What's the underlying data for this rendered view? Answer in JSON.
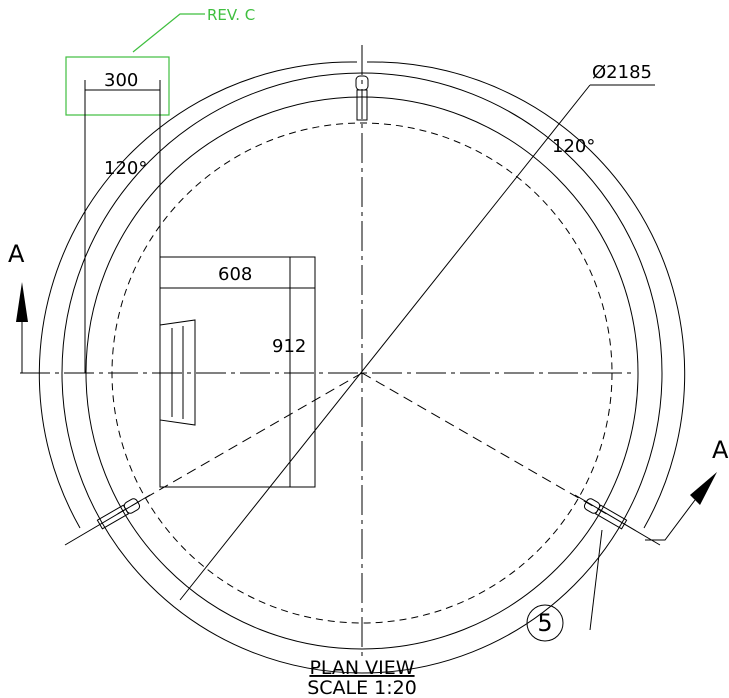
{
  "revision": "REV. C",
  "dimensions": {
    "offset": 300,
    "width": 608,
    "height": 912,
    "diameter": "Ø2185",
    "angle_left": "120°",
    "angle_right": "120°"
  },
  "section_marks": {
    "left": "A",
    "right": "A"
  },
  "item_balloon": 5,
  "view": {
    "title": "PLAN VIEW",
    "scale": "SCALE 1:20"
  }
}
